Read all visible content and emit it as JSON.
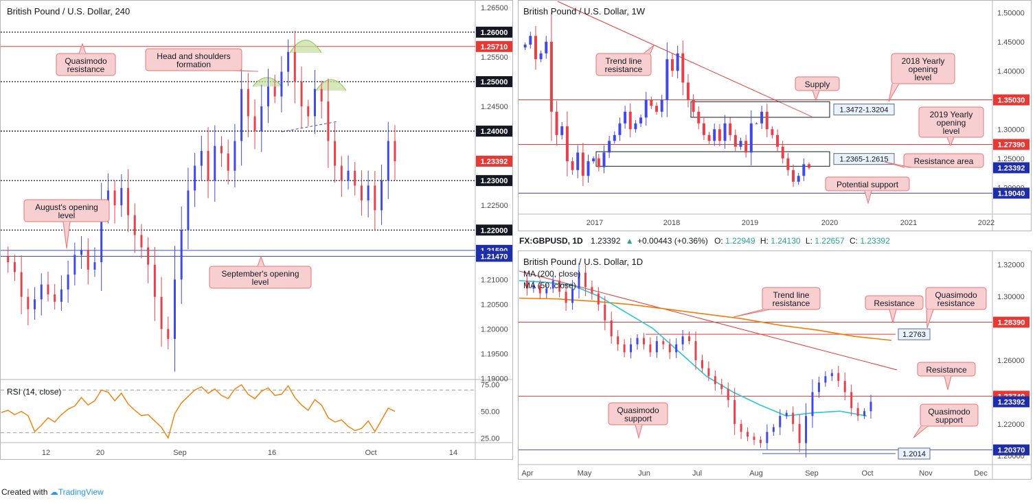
{
  "footer": {
    "created_with": "Created with",
    "brand": "TradingView"
  },
  "colors": {
    "bull": "#3f49e8",
    "bear": "#e8404a",
    "red_line": "#e53935",
    "blue_line": "#3f51b5",
    "rsi": "#f57c00",
    "ma200": "#f57c00",
    "ma50": "#26c6da",
    "label_bg": "#f8cfd0",
    "label_border": "#e57373"
  },
  "chart_data": [
    {
      "id": "left",
      "type": "candlestick",
      "title": "British Pound / U.S. Dollar, 240",
      "ylim": [
        1.1898,
        1.2665
      ],
      "y_ticks": [
        "1.26500",
        "1.25500",
        "1.24500",
        "1.23500",
        "1.22500",
        "1.21000",
        "1.20500",
        "1.20000",
        "1.19500",
        "1.19000"
      ],
      "x_ticks": [
        "12",
        "20",
        "Sep",
        "16",
        "Oct",
        "14"
      ],
      "price_labels": [
        {
          "value": 1.26,
          "label": "1.26000",
          "style": "black"
        },
        {
          "value": 1.2571,
          "label": "1.25710",
          "style": "red"
        },
        {
          "value": 1.25,
          "label": "1.25000",
          "style": "black"
        },
        {
          "value": 1.24,
          "label": "1.24000",
          "style": "black"
        },
        {
          "value": 1.23392,
          "label": "1.23392",
          "style": "red"
        },
        {
          "value": 1.23,
          "label": "1.23000",
          "style": "black"
        },
        {
          "value": 1.22,
          "label": "1.22000",
          "style": "black"
        },
        {
          "value": 1.2159,
          "label": "1.21590",
          "style": "blue"
        },
        {
          "value": 1.2147,
          "label": "1.21470",
          "style": "blue"
        }
      ],
      "levels": [
        {
          "value": 1.26,
          "kind": "dotted"
        },
        {
          "value": 1.2571,
          "kind": "red"
        },
        {
          "value": 1.25,
          "kind": "dotted"
        },
        {
          "value": 1.24,
          "kind": "dotted"
        },
        {
          "value": 1.23,
          "kind": "dotted"
        },
        {
          "value": 1.22,
          "kind": "dotted"
        },
        {
          "value": 1.2159,
          "kind": "blue"
        },
        {
          "value": 1.2147,
          "kind": "blue"
        }
      ],
      "annotations": [
        {
          "text": [
            "Quasimodo",
            "resistance"
          ]
        },
        {
          "text": [
            "Head and shoulders",
            "formation"
          ]
        },
        {
          "text": [
            "August's opening",
            "level"
          ]
        },
        {
          "text": [
            "September's opening",
            "level"
          ]
        }
      ],
      "path": [
        1.2147,
        1.2135,
        1.2115,
        1.2065,
        1.204,
        1.206,
        1.209,
        1.207,
        1.2055,
        1.208,
        1.211,
        1.215,
        1.216,
        1.212,
        1.2135,
        1.224,
        1.228,
        1.225,
        1.2285,
        1.223,
        1.219,
        1.2165,
        1.213,
        1.2065,
        1.2,
        1.198,
        1.21,
        1.22,
        1.228,
        1.233,
        1.236,
        1.23,
        1.237,
        1.2355,
        1.232,
        1.238,
        1.2485,
        1.243,
        1.24,
        1.245,
        1.249,
        1.247,
        1.252,
        1.256,
        1.25,
        1.245,
        1.243,
        1.2485,
        1.246,
        1.238,
        1.233,
        1.23,
        1.232,
        1.229,
        1.226,
        1.229,
        1.224,
        1.23,
        1.238,
        1.2339
      ],
      "rsi": {
        "label": "RSI (14, close)",
        "ylim": [
          22,
          78
        ],
        "ticks": [
          "75.00",
          "50.00",
          "25.00"
        ],
        "bands": [
          70,
          30
        ],
        "values": [
          49,
          51,
          47,
          50,
          46,
          31,
          37,
          44,
          40,
          47,
          52,
          55,
          63,
          56,
          60,
          70,
          68,
          60,
          67,
          57,
          51,
          46,
          47,
          41,
          35,
          25,
          48,
          58,
          64,
          70,
          73,
          67,
          71,
          65,
          62,
          71,
          75,
          66,
          62,
          69,
          72,
          65,
          66,
          74,
          63,
          56,
          51,
          61,
          56,
          44,
          40,
          42,
          36,
          32,
          34,
          41,
          31,
          42,
          53,
          50
        ]
      }
    },
    {
      "id": "top_right",
      "type": "candlestick",
      "title": "British Pound / U.S. Dollar, 1W",
      "ylim": [
        1.1545,
        1.5215
      ],
      "y_ticks": [
        "1.50000",
        "1.45000",
        "1.40000",
        "1.30000",
        "1.25000",
        "1.20000"
      ],
      "x_ticks": [
        "2017",
        "2018",
        "2019",
        "2020",
        "2021",
        "2022"
      ],
      "price_labels": [
        {
          "value": 1.3503,
          "label": "1.35030",
          "style": "red"
        },
        {
          "value": 1.2739,
          "label": "1.27390",
          "style": "red"
        },
        {
          "value": 1.23392,
          "label": "1.23392",
          "style": "blue"
        },
        {
          "value": 1.1904,
          "label": "1.19040",
          "style": "blue"
        }
      ],
      "levels": [
        {
          "value": 1.3503,
          "kind": "red"
        },
        {
          "value": 1.2739,
          "kind": "red"
        },
        {
          "value": 1.1904,
          "kind": "blue"
        }
      ],
      "zones": [
        {
          "label": "1.3472-1.3204",
          "top": 1.3472,
          "bottom": 1.3204
        },
        {
          "label": "1.2365-1.2615",
          "top": 1.2615,
          "bottom": 1.2365
        }
      ],
      "annotations": [
        {
          "text": [
            "Trend line",
            "resistance"
          ]
        },
        {
          "text": [
            "Supply"
          ]
        },
        {
          "text": [
            "2018 Yearly",
            "opening",
            "level"
          ]
        },
        {
          "text": [
            "2019 Yearly",
            "opening",
            "level"
          ]
        },
        {
          "text": [
            "Resistance area"
          ]
        },
        {
          "text": [
            "Potential support"
          ]
        }
      ],
      "path": [
        1.44,
        1.445,
        1.46,
        1.42,
        1.43,
        1.45,
        1.33,
        1.29,
        1.305,
        1.245,
        1.23,
        1.26,
        1.22,
        1.245,
        1.25,
        1.235,
        1.26,
        1.28,
        1.29,
        1.31,
        1.33,
        1.3,
        1.31,
        1.32,
        1.35,
        1.34,
        1.33,
        1.35,
        1.42,
        1.4,
        1.43,
        1.38,
        1.35,
        1.33,
        1.31,
        1.29,
        1.28,
        1.3,
        1.28,
        1.31,
        1.29,
        1.27,
        1.28,
        1.26,
        1.31,
        1.31,
        1.33,
        1.3,
        1.29,
        1.27,
        1.25,
        1.23,
        1.21,
        1.22,
        1.24,
        1.2339
      ]
    },
    {
      "id": "bottom_right",
      "type": "candlestick",
      "title": "British Pound / U.S. Dollar, 1D",
      "header": {
        "symbol": "FX:GBPUSD, 1D",
        "price": "1.23392",
        "change": "+0.00443 (+0.36%)",
        "o_label": "O:",
        "o": "1.22949",
        "h_label": "H:",
        "h": "1.24130",
        "l_label": "L:",
        "l": "1.22657",
        "c_label": "C:",
        "c": "1.23392"
      },
      "ylim": [
        1.1945,
        1.3285
      ],
      "y_ticks": [
        "1.32000",
        "1.30000",
        "1.26000",
        "1.22000",
        "1.20000"
      ],
      "x_ticks": [
        "Apr",
        "May",
        "Jun",
        "Jul",
        "Aug",
        "Sep",
        "Oct",
        "Nov",
        "Dec"
      ],
      "legend": [
        "MA (200, close)",
        "MA (50, close)"
      ],
      "price_labels": [
        {
          "value": 1.2839,
          "label": "1.28390",
          "style": "red"
        },
        {
          "value": 1.2374,
          "label": "1.23740",
          "style": "red"
        },
        {
          "value": 1.23392,
          "label": "1.23392",
          "style": "blue"
        },
        {
          "value": 1.2037,
          "label": "1.20370",
          "style": "blue"
        }
      ],
      "levels": [
        {
          "value": 1.2839,
          "kind": "red"
        },
        {
          "value": 1.2374,
          "kind": "red"
        },
        {
          "value": 1.2037,
          "kind": "blue"
        }
      ],
      "short_levels": [
        {
          "value": 1.2763,
          "label": "1.2763",
          "kind": "red"
        },
        {
          "value": 1.2014,
          "label": "1.2014",
          "kind": "blue"
        }
      ],
      "annotations": [
        {
          "text": [
            "Trend line",
            "resistance"
          ]
        },
        {
          "text": [
            "Resistance"
          ]
        },
        {
          "text": [
            "Quasimodo",
            "resistance"
          ]
        },
        {
          "text": [
            "Resistance"
          ]
        },
        {
          "text": [
            "Quasimodo",
            "support"
          ]
        },
        {
          "text": [
            "Quasimodo",
            "support"
          ]
        }
      ],
      "path": [
        1.31,
        1.305,
        1.307,
        1.302,
        1.305,
        1.31,
        1.303,
        1.296,
        1.305,
        1.315,
        1.306,
        1.302,
        1.295,
        1.285,
        1.275,
        1.27,
        1.265,
        1.27,
        1.274,
        1.27,
        1.265,
        1.272,
        1.27,
        1.265,
        1.27,
        1.275,
        1.272,
        1.26,
        1.255,
        1.25,
        1.245,
        1.242,
        1.235,
        1.22,
        1.215,
        1.212,
        1.21,
        1.208,
        1.215,
        1.218,
        1.225,
        1.227,
        1.22,
        1.208,
        1.225,
        1.24,
        1.246,
        1.25,
        1.252,
        1.247,
        1.24,
        1.23,
        1.225,
        1.228,
        1.2339
      ],
      "ma200": [
        1.299,
        1.2985,
        1.297,
        1.295,
        1.292,
        1.289,
        1.286,
        1.282,
        1.279,
        1.275,
        1.2725
      ],
      "ma50": [
        1.31,
        1.309,
        1.307,
        1.3,
        1.29,
        1.28,
        1.265,
        1.25,
        1.24,
        1.232,
        1.225,
        1.227,
        1.228,
        1.225
      ]
    }
  ]
}
